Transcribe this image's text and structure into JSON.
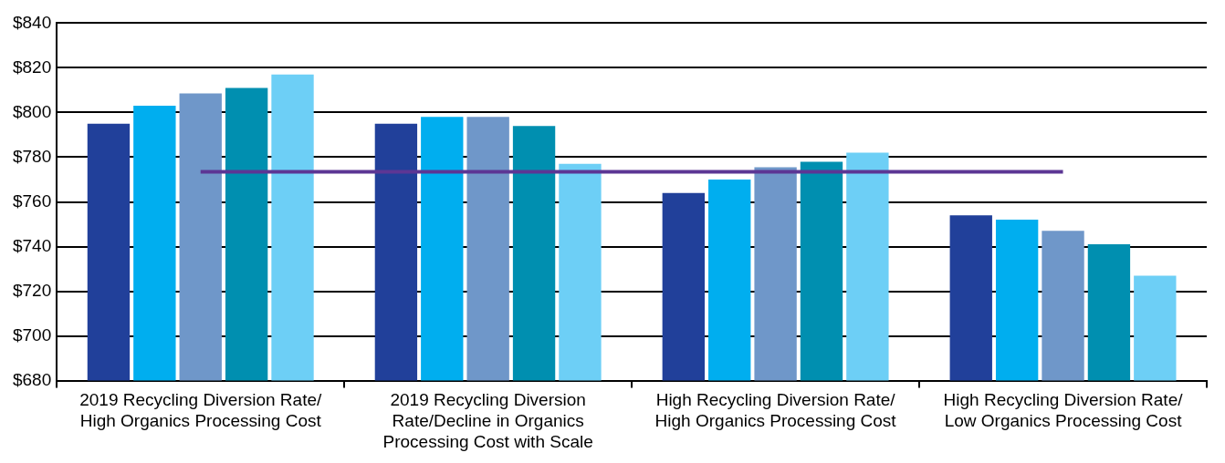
{
  "chart_data": {
    "type": "bar",
    "categories": [
      "2019 Recycling Diversion Rate/ High Organics Processing Cost",
      "2019 Recycling Diversion Rate/Decline in Organics Processing Cost with Scale",
      "High Recycling Diversion Rate/ High Organics Processing Cost",
      "High Recycling Diversion Rate/ Low Organics Processing Cost"
    ],
    "series": [
      {
        "color": "#21409a",
        "values": [
          795,
          795,
          764,
          754
        ]
      },
      {
        "color": "#00aeef",
        "values": [
          803,
          798,
          770,
          752
        ]
      },
      {
        "color": "#6f97c9",
        "values": [
          808.5,
          798,
          775.5,
          747
        ]
      },
      {
        "color": "#008fb0",
        "values": [
          811,
          794,
          778,
          741
        ]
      },
      {
        "color": "#6dcff6",
        "values": [
          817,
          777,
          782,
          727
        ]
      },
      {
        "type": "line",
        "color": "#5c3694",
        "values": [
          773.5,
          773.5,
          773.5,
          773.5
        ]
      }
    ],
    "ylim": [
      680,
      840
    ],
    "yticks": [
      {
        "value": 680,
        "label": "$680"
      },
      {
        "value": 700,
        "label": "$700"
      },
      {
        "value": 720,
        "label": "$720"
      },
      {
        "value": 740,
        "label": "$740"
      },
      {
        "value": 760,
        "label": "$760"
      },
      {
        "value": 780,
        "label": "$780"
      },
      {
        "value": 800,
        "label": "$800"
      },
      {
        "value": 820,
        "label": "$820"
      },
      {
        "value": 840,
        "label": "$840"
      }
    ],
    "grid": "y",
    "legend": false,
    "marker": "none"
  }
}
